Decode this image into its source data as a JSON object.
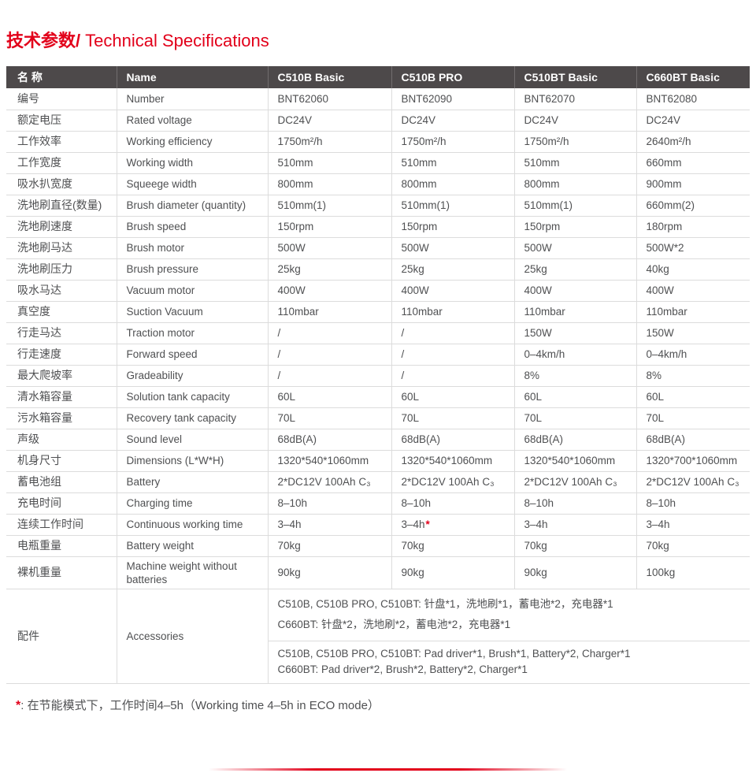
{
  "page": {
    "title": {
      "zh": "技术参数/",
      "en": "Technical Specifications"
    },
    "accent_color": "#e2001a",
    "header_bg": "#4d494a",
    "footnote": {
      "marker": "*",
      "text": ": 在节能模式下，工作时间4–5h（Working time 4–5h in ECO mode）"
    }
  },
  "table": {
    "columns": [
      "名 称",
      "Name",
      "C510B Basic",
      "C510B PRO",
      "C510BT Basic",
      "C660BT Basic"
    ],
    "rows": [
      {
        "zh": "编号",
        "en": "Number",
        "values": [
          "BNT62060",
          "BNT62090",
          "BNT62070",
          "BNT62080"
        ]
      },
      {
        "zh": "额定电压",
        "en": "Rated voltage",
        "values": [
          "DC24V",
          "DC24V",
          "DC24V",
          "DC24V"
        ]
      },
      {
        "zh": "工作效率",
        "en": "Working efficiency",
        "values": [
          "1750m²/h",
          "1750m²/h",
          "1750m²/h",
          "2640m²/h"
        ]
      },
      {
        "zh": "工作宽度",
        "en": "Working width",
        "values": [
          "510mm",
          "510mm",
          "510mm",
          "660mm"
        ]
      },
      {
        "zh": "吸水扒宽度",
        "en": "Squeege width",
        "values": [
          "800mm",
          "800mm",
          "800mm",
          "900mm"
        ]
      },
      {
        "zh": "洗地刷直径(数量)",
        "en": "Brush diameter (quantity)",
        "values": [
          "510mm(1)",
          "510mm(1)",
          "510mm(1)",
          "660mm(2)"
        ]
      },
      {
        "zh": "洗地刷速度",
        "en": "Brush speed",
        "values": [
          "150rpm",
          "150rpm",
          "150rpm",
          "180rpm"
        ]
      },
      {
        "zh": "洗地刷马达",
        "en": "Brush motor",
        "values": [
          "500W",
          "500W",
          "500W",
          "500W*2"
        ]
      },
      {
        "zh": "洗地刷压力",
        "en": "Brush pressure",
        "values": [
          "25kg",
          "25kg",
          "25kg",
          "40kg"
        ]
      },
      {
        "zh": "吸水马达",
        "en": "Vacuum motor",
        "values": [
          "400W",
          "400W",
          "400W",
          "400W"
        ]
      },
      {
        "zh": "真空度",
        "en": "Suction Vacuum",
        "values": [
          "110mbar",
          "110mbar",
          "110mbar",
          "110mbar"
        ]
      },
      {
        "zh": "行走马达",
        "en": "Traction motor",
        "values": [
          "/",
          "/",
          "150W",
          "150W"
        ]
      },
      {
        "zh": "行走速度",
        "en": "Forward speed",
        "values": [
          "/",
          "/",
          "0–4km/h",
          "0–4km/h"
        ]
      },
      {
        "zh": "最大爬坡率",
        "en": "Gradeability",
        "values": [
          "/",
          "/",
          "8%",
          "8%"
        ]
      },
      {
        "zh": "清水箱容量",
        "en": "Solution tank capacity",
        "values": [
          "60L",
          "60L",
          "60L",
          "60L"
        ]
      },
      {
        "zh": "污水箱容量",
        "en": "Recovery tank capacity",
        "values": [
          "70L",
          "70L",
          "70L",
          "70L"
        ]
      },
      {
        "zh": "声级",
        "en": "Sound level",
        "values": [
          "68dB(A)",
          "68dB(A)",
          "68dB(A)",
          "68dB(A)"
        ]
      },
      {
        "zh": "机身尺寸",
        "en": "Dimensions (L*W*H)",
        "values": [
          "1320*540*1060mm",
          "1320*540*1060mm",
          "1320*540*1060mm",
          "1320*700*1060mm"
        ]
      },
      {
        "zh": "蓄电池组",
        "en": "Battery",
        "values": [
          "2*DC12V 100Ah C₃",
          "2*DC12V 100Ah C₃",
          "2*DC12V 100Ah C₃",
          "2*DC12V 100Ah C₃"
        ]
      },
      {
        "zh": "充电时间",
        "en": "Charging time",
        "values": [
          "8–10h",
          "8–10h",
          "8–10h",
          "8–10h"
        ]
      },
      {
        "zh": "连续工作时间",
        "en": "Continuous working time",
        "values": [
          "3–4h",
          {
            "text": "3–4h",
            "marker": "*"
          },
          "3–4h",
          "3–4h"
        ]
      },
      {
        "zh": "电瓶重量",
        "en": "Battery weight",
        "values": [
          "70kg",
          "70kg",
          "70kg",
          "70kg"
        ]
      },
      {
        "zh": "裸机重量",
        "en": "Machine weight  without batteries",
        "values": [
          "90kg",
          "90kg",
          "90kg",
          "100kg"
        ],
        "tall": true
      }
    ],
    "accessories": {
      "zh": "配件",
      "en": "Accessories",
      "blocks": [
        {
          "lines": [
            "C510B, C510B PRO, C510BT: 针盘*1，洗地刷*1，蓄电池*2，充电器*1",
            "C660BT: 针盘*2，洗地刷*2，蓄电池*2，充电器*1"
          ]
        },
        {
          "lines": [
            "C510B, C510B PRO, C510BT: Pad driver*1, Brush*1, Battery*2, Charger*1",
            "C660BT: Pad driver*2, Brush*2, Battery*2, Charger*1"
          ]
        }
      ]
    }
  }
}
